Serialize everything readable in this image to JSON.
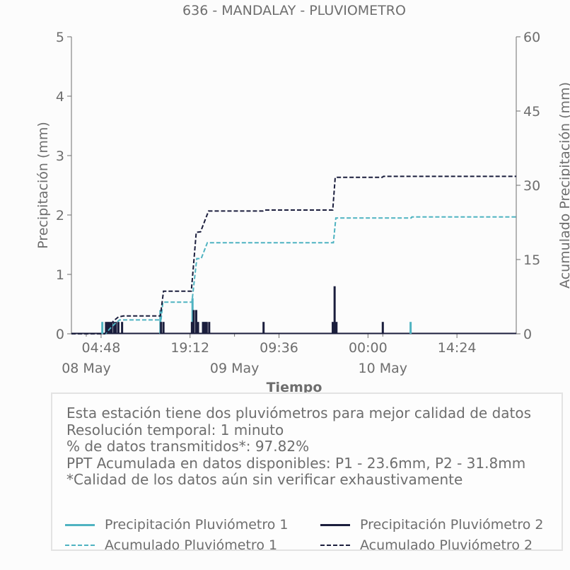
{
  "chart_data": {
    "type": "line",
    "title": "636 - MANDALAY - PLUVIOMETRO",
    "xlabel": "Tiempo",
    "ylabel_left": "Precipitación (mm)",
    "ylabel_right": "Acumulado Precipitación (mm)",
    "x_range_hours": [
      0,
      72
    ],
    "ylim_left": [
      0,
      5
    ],
    "ylim_right": [
      0,
      60
    ],
    "yticks_left": [
      0,
      1,
      2,
      3,
      4,
      5
    ],
    "yticks_right": [
      0,
      15,
      30,
      45,
      60
    ],
    "xticks": [
      {
        "t": 4.8,
        "label": "04:48"
      },
      {
        "t": 19.2,
        "label": "19:12"
      },
      {
        "t": 33.6,
        "label": "09:36"
      },
      {
        "t": 48.0,
        "label": "00:00"
      },
      {
        "t": 62.4,
        "label": "14:24"
      }
    ],
    "xtick_minor": [
      2.4,
      26.4,
      50.4
    ],
    "date_labels": [
      {
        "t": 2.4,
        "label": "08 May"
      },
      {
        "t": 26.4,
        "label": "09 May"
      },
      {
        "t": 50.4,
        "label": "10 May"
      }
    ],
    "grid": false,
    "series": [
      {
        "name": "Precipitación Pluviómetro 1",
        "kind": "bars",
        "axis": "left",
        "color": "#4fb3c1",
        "points": [
          [
            5.0,
            0.2
          ],
          [
            14.4,
            0.4
          ],
          [
            19.6,
            0.6
          ],
          [
            21.3,
            0.2
          ],
          [
            21.7,
            0.2
          ],
          [
            54.9,
            0.2
          ]
        ]
      },
      {
        "name": "Precipitación Pluviómetro 2",
        "kind": "bars",
        "axis": "left",
        "color": "#1b1e3d",
        "points": [
          [
            5.6,
            0.2
          ],
          [
            5.9,
            0.2
          ],
          [
            6.2,
            0.2
          ],
          [
            6.5,
            0.2
          ],
          [
            6.9,
            0.2
          ],
          [
            7.2,
            0.2
          ],
          [
            7.6,
            0.2
          ],
          [
            8.2,
            0.2
          ],
          [
            14.5,
            0.2
          ],
          [
            14.9,
            0.2
          ],
          [
            19.5,
            0.2
          ],
          [
            19.8,
            0.4
          ],
          [
            20.2,
            0.4
          ],
          [
            20.5,
            0.2
          ],
          [
            21.3,
            0.2
          ],
          [
            21.6,
            0.2
          ],
          [
            21.9,
            0.2
          ],
          [
            22.3,
            0.2
          ],
          [
            31.1,
            0.2
          ],
          [
            42.3,
            0.2
          ],
          [
            42.6,
            0.8
          ],
          [
            42.9,
            0.2
          ],
          [
            50.4,
            0.2
          ]
        ]
      },
      {
        "name": "Acumulado Pluviómetro 1",
        "kind": "dashed",
        "axis": "right",
        "color": "#4fb3c1",
        "points": [
          [
            0,
            0
          ],
          [
            5.5,
            0
          ],
          [
            6.2,
            1.0
          ],
          [
            7.0,
            2.0
          ],
          [
            7.8,
            2.8
          ],
          [
            8.5,
            2.8
          ],
          [
            14.5,
            2.8
          ],
          [
            14.8,
            6.4
          ],
          [
            19.5,
            6.4
          ],
          [
            19.9,
            10.8
          ],
          [
            20.3,
            15.2
          ],
          [
            21.0,
            15.2
          ],
          [
            22.0,
            18.4
          ],
          [
            42.4,
            18.4
          ],
          [
            42.8,
            23.4
          ],
          [
            55.0,
            23.4
          ],
          [
            55.1,
            23.6
          ],
          [
            72,
            23.6
          ]
        ]
      },
      {
        "name": "Acumulado Pluviómetro 2",
        "kind": "dashed",
        "axis": "right",
        "color": "#1b1e3d",
        "points": [
          [
            0,
            0
          ],
          [
            5.4,
            0
          ],
          [
            6.0,
            1.2
          ],
          [
            6.8,
            2.6
          ],
          [
            7.6,
            3.4
          ],
          [
            8.4,
            3.6
          ],
          [
            14.4,
            3.6
          ],
          [
            14.9,
            8.6
          ],
          [
            19.4,
            8.6
          ],
          [
            19.8,
            14.5
          ],
          [
            20.2,
            20.5
          ],
          [
            20.9,
            20.6
          ],
          [
            22.2,
            24.8
          ],
          [
            31.0,
            24.8
          ],
          [
            31.2,
            25.0
          ],
          [
            42.3,
            25.0
          ],
          [
            42.7,
            31.6
          ],
          [
            50.3,
            31.6
          ],
          [
            50.5,
            31.8
          ],
          [
            72,
            31.8
          ]
        ]
      }
    ]
  },
  "info_box": {
    "lines": [
      "Esta estación tiene dos pluviómetros para mejor calidad de datos",
      "Resolución temporal: 1 minuto",
      "% de datos transmitidos*: 97.82%",
      "PPT Acumulada en datos disponibles: P1 - 23.6mm, P2 - 31.8mm",
      "*Calidad de los datos aún sin verificar exhaustivamente"
    ],
    "legend": [
      {
        "label": "Precipitación Pluviómetro 1",
        "color": "#4fb3c1",
        "style": "solid"
      },
      {
        "label": "Precipitación Pluviómetro 2",
        "color": "#1b1e3d",
        "style": "solid"
      },
      {
        "label": "Acumulado Pluviómetro 1",
        "color": "#4fb3c1",
        "style": "dashed"
      },
      {
        "label": "Acumulado Pluviómetro 2",
        "color": "#1b1e3d",
        "style": "dashed"
      }
    ]
  }
}
